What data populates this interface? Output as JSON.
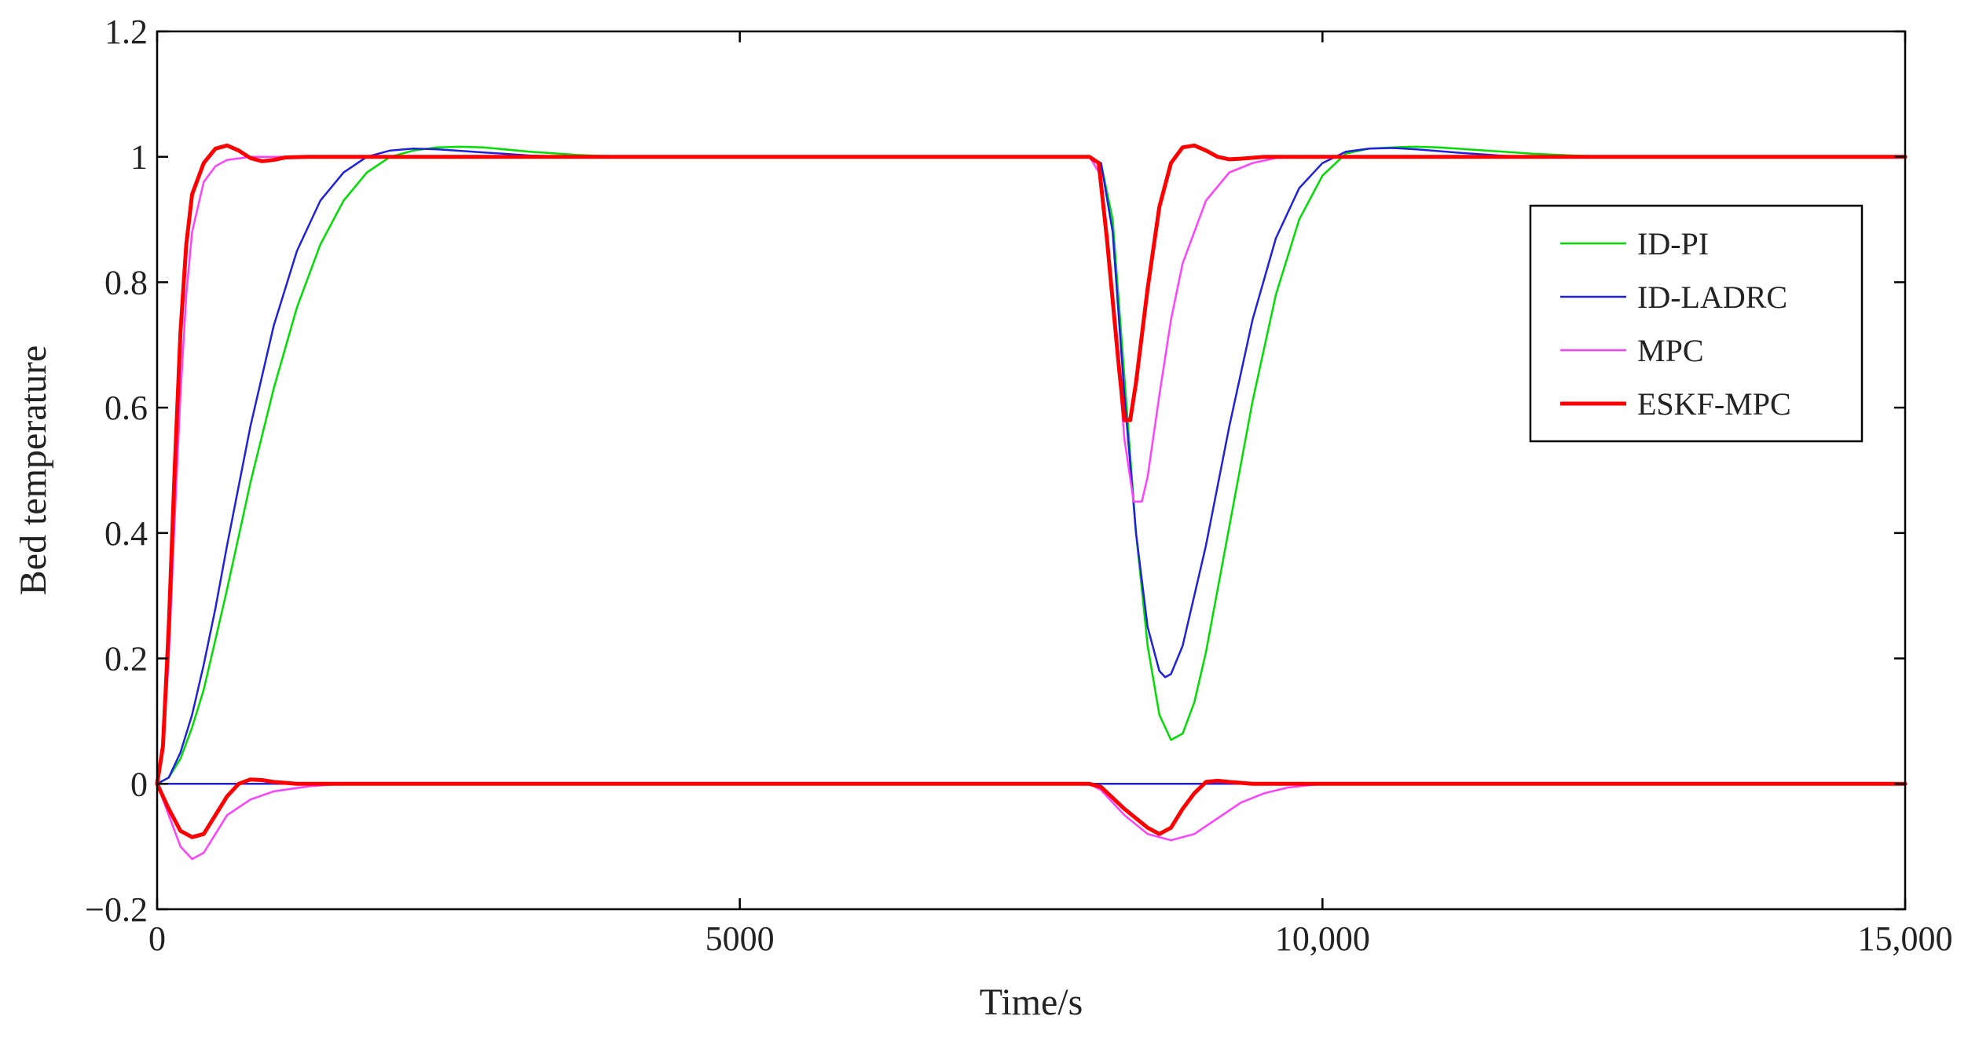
{
  "chart_data": {
    "type": "line",
    "title": "",
    "xlabel": "Time/s",
    "ylabel": "Bed temperature",
    "xlim": [
      0,
      15000
    ],
    "ylim": [
      -0.2,
      1.2
    ],
    "xticks": [
      0,
      5000,
      10000,
      15000
    ],
    "xtick_labels": [
      "0",
      "5000",
      "10,000",
      "15,000"
    ],
    "yticks": [
      -0.2,
      0,
      0.2,
      0.4,
      0.6,
      0.8,
      1,
      1.2
    ],
    "ytick_labels": [
      "−0.2",
      "0",
      "0.2",
      "0.4",
      "0.6",
      "0.8",
      "1",
      "1.2"
    ],
    "grid": false,
    "legend": {
      "position": "right"
    },
    "series": [
      {
        "name": "ID-PI",
        "color": "#00dd00",
        "output": [
          [
            0,
            0
          ],
          [
            100,
            0.01
          ],
          [
            200,
            0.04
          ],
          [
            300,
            0.09
          ],
          [
            400,
            0.15
          ],
          [
            500,
            0.23
          ],
          [
            600,
            0.31
          ],
          [
            800,
            0.48
          ],
          [
            1000,
            0.63
          ],
          [
            1200,
            0.76
          ],
          [
            1400,
            0.86
          ],
          [
            1600,
            0.93
          ],
          [
            1800,
            0.975
          ],
          [
            2000,
            1.0
          ],
          [
            2200,
            1.01
          ],
          [
            2400,
            1.015
          ],
          [
            2600,
            1.016
          ],
          [
            2800,
            1.015
          ],
          [
            3200,
            1.008
          ],
          [
            3600,
            1.003
          ],
          [
            4000,
            1.0
          ],
          [
            8000,
            1.0
          ],
          [
            8100,
            0.99
          ],
          [
            8200,
            0.9
          ],
          [
            8300,
            0.65
          ],
          [
            8400,
            0.4
          ],
          [
            8500,
            0.22
          ],
          [
            8600,
            0.11
          ],
          [
            8700,
            0.07
          ],
          [
            8800,
            0.08
          ],
          [
            8900,
            0.13
          ],
          [
            9000,
            0.21
          ],
          [
            9200,
            0.41
          ],
          [
            9400,
            0.61
          ],
          [
            9600,
            0.78
          ],
          [
            9800,
            0.9
          ],
          [
            10000,
            0.97
          ],
          [
            10200,
            1.005
          ],
          [
            10400,
            1.013
          ],
          [
            10600,
            1.015
          ],
          [
            10800,
            1.016
          ],
          [
            11000,
            1.015
          ],
          [
            11400,
            1.01
          ],
          [
            11800,
            1.005
          ],
          [
            12400,
            1.0
          ],
          [
            15000,
            1.0
          ]
        ],
        "control": [
          [
            0,
            0
          ],
          [
            15000,
            0
          ]
        ]
      },
      {
        "name": "ID-LADRC",
        "color": "#2020e0",
        "output": [
          [
            0,
            0
          ],
          [
            100,
            0.01
          ],
          [
            200,
            0.05
          ],
          [
            300,
            0.11
          ],
          [
            400,
            0.19
          ],
          [
            500,
            0.28
          ],
          [
            600,
            0.38
          ],
          [
            800,
            0.57
          ],
          [
            1000,
            0.73
          ],
          [
            1200,
            0.85
          ],
          [
            1400,
            0.93
          ],
          [
            1600,
            0.975
          ],
          [
            1800,
            1.0
          ],
          [
            2000,
            1.01
          ],
          [
            2200,
            1.013
          ],
          [
            2400,
            1.012
          ],
          [
            2800,
            1.007
          ],
          [
            3200,
            1.002
          ],
          [
            3600,
            1.0
          ],
          [
            8000,
            1.0
          ],
          [
            8100,
            0.99
          ],
          [
            8200,
            0.88
          ],
          [
            8300,
            0.62
          ],
          [
            8400,
            0.4
          ],
          [
            8500,
            0.25
          ],
          [
            8600,
            0.18
          ],
          [
            8650,
            0.17
          ],
          [
            8700,
            0.175
          ],
          [
            8800,
            0.22
          ],
          [
            9000,
            0.38
          ],
          [
            9200,
            0.57
          ],
          [
            9400,
            0.74
          ],
          [
            9600,
            0.87
          ],
          [
            9800,
            0.95
          ],
          [
            10000,
            0.99
          ],
          [
            10200,
            1.008
          ],
          [
            10400,
            1.013
          ],
          [
            10600,
            1.014
          ],
          [
            10800,
            1.012
          ],
          [
            11200,
            1.006
          ],
          [
            11600,
            1.001
          ],
          [
            12000,
            1.0
          ],
          [
            15000,
            1.0
          ]
        ],
        "control": [
          [
            0,
            0
          ],
          [
            15000,
            0
          ]
        ]
      },
      {
        "name": "MPC",
        "color": "#ff40ff",
        "output": [
          [
            0,
            0
          ],
          [
            50,
            0.05
          ],
          [
            100,
            0.2
          ],
          [
            150,
            0.42
          ],
          [
            200,
            0.62
          ],
          [
            250,
            0.78
          ],
          [
            300,
            0.88
          ],
          [
            400,
            0.96
          ],
          [
            500,
            0.985
          ],
          [
            600,
            0.995
          ],
          [
            800,
            1.0
          ],
          [
            8000,
            1.0
          ],
          [
            8100,
            0.97
          ],
          [
            8200,
            0.78
          ],
          [
            8300,
            0.55
          ],
          [
            8380,
            0.45
          ],
          [
            8450,
            0.45
          ],
          [
            8500,
            0.49
          ],
          [
            8600,
            0.62
          ],
          [
            8700,
            0.74
          ],
          [
            8800,
            0.83
          ],
          [
            9000,
            0.93
          ],
          [
            9200,
            0.975
          ],
          [
            9400,
            0.99
          ],
          [
            9600,
            0.998
          ],
          [
            10000,
            1.0
          ],
          [
            15000,
            1.0
          ]
        ],
        "control": [
          [
            0,
            0
          ],
          [
            100,
            -0.05
          ],
          [
            200,
            -0.1
          ],
          [
            300,
            -0.12
          ],
          [
            400,
            -0.11
          ],
          [
            500,
            -0.08
          ],
          [
            600,
            -0.05
          ],
          [
            800,
            -0.025
          ],
          [
            1000,
            -0.012
          ],
          [
            1300,
            -0.004
          ],
          [
            1600,
            0
          ],
          [
            8000,
            0
          ],
          [
            8100,
            -0.01
          ],
          [
            8300,
            -0.05
          ],
          [
            8500,
            -0.08
          ],
          [
            8700,
            -0.09
          ],
          [
            8900,
            -0.08
          ],
          [
            9100,
            -0.055
          ],
          [
            9300,
            -0.03
          ],
          [
            9500,
            -0.015
          ],
          [
            9700,
            -0.006
          ],
          [
            10000,
            0
          ],
          [
            15000,
            0
          ]
        ]
      },
      {
        "name": "ESKF-MPC",
        "color": "#ff0000",
        "output": [
          [
            0,
            0
          ],
          [
            50,
            0.06
          ],
          [
            100,
            0.25
          ],
          [
            150,
            0.5
          ],
          [
            200,
            0.72
          ],
          [
            250,
            0.86
          ],
          [
            300,
            0.94
          ],
          [
            400,
            0.99
          ],
          [
            500,
            1.013
          ],
          [
            600,
            1.018
          ],
          [
            700,
            1.01
          ],
          [
            800,
            0.998
          ],
          [
            900,
            0.993
          ],
          [
            1000,
            0.995
          ],
          [
            1100,
            0.999
          ],
          [
            1300,
            1.0
          ],
          [
            8000,
            1.0
          ],
          [
            8080,
            0.99
          ],
          [
            8150,
            0.87
          ],
          [
            8250,
            0.67
          ],
          [
            8300,
            0.58
          ],
          [
            8350,
            0.58
          ],
          [
            8400,
            0.64
          ],
          [
            8500,
            0.79
          ],
          [
            8600,
            0.92
          ],
          [
            8700,
            0.99
          ],
          [
            8800,
            1.015
          ],
          [
            8900,
            1.018
          ],
          [
            9000,
            1.01
          ],
          [
            9100,
            1.0
          ],
          [
            9200,
            0.996
          ],
          [
            9300,
            0.997
          ],
          [
            9500,
            1.0
          ],
          [
            15000,
            1.0
          ]
        ],
        "control": [
          [
            0,
            0
          ],
          [
            100,
            -0.04
          ],
          [
            200,
            -0.075
          ],
          [
            300,
            -0.085
          ],
          [
            400,
            -0.08
          ],
          [
            500,
            -0.05
          ],
          [
            600,
            -0.02
          ],
          [
            700,
            0.0
          ],
          [
            800,
            0.007
          ],
          [
            900,
            0.006
          ],
          [
            1000,
            0.003
          ],
          [
            1200,
            0.0
          ],
          [
            8000,
            0
          ],
          [
            8100,
            -0.005
          ],
          [
            8300,
            -0.04
          ],
          [
            8500,
            -0.07
          ],
          [
            8600,
            -0.08
          ],
          [
            8700,
            -0.07
          ],
          [
            8800,
            -0.04
          ],
          [
            8900,
            -0.015
          ],
          [
            9000,
            0.003
          ],
          [
            9100,
            0.005
          ],
          [
            9200,
            0.003
          ],
          [
            9400,
            0.0
          ],
          [
            15000,
            0
          ]
        ]
      }
    ]
  }
}
